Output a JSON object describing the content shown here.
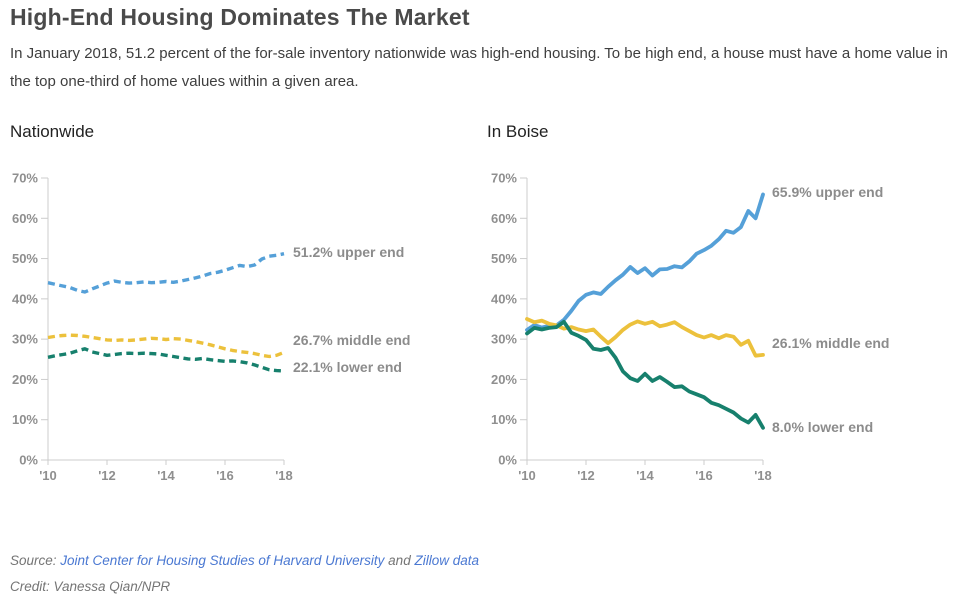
{
  "header": {
    "title": "High-End Housing Dominates The Market",
    "subtitle": "In January 2018, 51.2 percent of the for-sale inventory nationwide was high-end housing. To be high end, a house must have a home value in the top one-third of home values within a given area."
  },
  "chart_data": [
    {
      "type": "line",
      "title": "Nationwide",
      "line_style": "dashed",
      "dash": [
        7,
        4.5
      ],
      "stroke_width": 3.4,
      "xlim": [
        2010,
        2018
      ],
      "ylim": [
        0,
        70
      ],
      "grid": false,
      "xtick_labels": [
        "'10",
        "'12",
        "'14",
        "'16",
        "'18"
      ],
      "xtick_years": [
        2010,
        2012,
        2014,
        2016,
        2018
      ],
      "yticks": [
        "70%",
        "60%",
        "50%",
        "40%",
        "30%",
        "20%",
        "10%",
        "0%"
      ],
      "x": [
        2010,
        2010.25,
        2010.5,
        2010.75,
        2011,
        2011.25,
        2011.5,
        2011.75,
        2012,
        2012.25,
        2012.5,
        2012.75,
        2013,
        2013.25,
        2013.5,
        2013.75,
        2014,
        2014.25,
        2014.5,
        2014.75,
        2015,
        2015.25,
        2015.5,
        2015.75,
        2016,
        2016.25,
        2016.5,
        2016.75,
        2017,
        2017.25,
        2017.5,
        2017.75,
        2018
      ],
      "series": [
        {
          "name": "upper end",
          "label": "51.2% upper end",
          "end_value": 51.2,
          "color": "#55a0d8",
          "label_dy": -2,
          "values": [
            44.0,
            43.6,
            43.2,
            42.8,
            42.1,
            41.7,
            42.5,
            43.2,
            43.9,
            44.4,
            44.1,
            43.9,
            44.0,
            44.2,
            44.0,
            44.1,
            44.3,
            44.1,
            44.4,
            44.8,
            45.2,
            45.7,
            46.3,
            46.6,
            47.1,
            47.7,
            48.3,
            48.0,
            48.4,
            49.9,
            50.6,
            50.8,
            51.2
          ]
        },
        {
          "name": "middle end",
          "label": "26.7% middle end",
          "end_value": 26.7,
          "color": "#ecc13c",
          "label_dy": -12,
          "values": [
            30.4,
            30.7,
            30.9,
            31.0,
            30.9,
            30.7,
            30.4,
            30.1,
            29.8,
            29.7,
            29.8,
            29.7,
            29.8,
            30.0,
            30.2,
            30.1,
            29.9,
            30.1,
            30.0,
            29.7,
            29.4,
            29.0,
            28.6,
            28.1,
            27.6,
            27.2,
            26.9,
            26.7,
            26.4,
            26.0,
            25.7,
            26.0,
            26.7
          ]
        },
        {
          "name": "lower end",
          "label": "22.1% lower end",
          "end_value": 22.1,
          "color": "#17806d",
          "label_dy": -4,
          "values": [
            25.5,
            25.9,
            26.2,
            26.5,
            27.1,
            27.6,
            26.8,
            26.4,
            26.0,
            26.2,
            26.4,
            26.5,
            26.4,
            26.5,
            26.4,
            26.3,
            26.0,
            25.7,
            25.4,
            25.1,
            25.0,
            25.2,
            24.9,
            24.7,
            24.5,
            24.6,
            24.4,
            24.1,
            23.6,
            23.0,
            22.4,
            22.2,
            22.1
          ]
        }
      ]
    },
    {
      "type": "line",
      "title": "In Boise",
      "line_style": "solid",
      "dash": null,
      "stroke_width": 3.8,
      "xlim": [
        2010,
        2018
      ],
      "ylim": [
        0,
        70
      ],
      "grid": false,
      "xtick_labels": [
        "'10",
        "'12",
        "'14",
        "'16",
        "'18"
      ],
      "xtick_years": [
        2010,
        2012,
        2014,
        2016,
        2018
      ],
      "yticks": [
        "70%",
        "60%",
        "50%",
        "40%",
        "30%",
        "20%",
        "10%",
        "0%"
      ],
      "x": [
        2010,
        2010.25,
        2010.5,
        2010.75,
        2011,
        2011.25,
        2011.5,
        2011.75,
        2012,
        2012.25,
        2012.5,
        2012.75,
        2013,
        2013.25,
        2013.5,
        2013.75,
        2014,
        2014.25,
        2014.5,
        2014.75,
        2015,
        2015.25,
        2015.5,
        2015.75,
        2016,
        2016.25,
        2016.5,
        2016.75,
        2017,
        2017.25,
        2017.5,
        2017.75,
        2018
      ],
      "series": [
        {
          "name": "upper end",
          "label": "65.9% upper end",
          "end_value": 65.9,
          "color": "#55a0d8",
          "label_dy": -3,
          "values": [
            32.3,
            33.5,
            32.9,
            33.3,
            33.4,
            34.8,
            37.0,
            39.5,
            41.0,
            41.6,
            41.2,
            43.0,
            44.6,
            46.0,
            47.9,
            46.4,
            47.6,
            45.8,
            47.3,
            47.4,
            48.1,
            47.8,
            49.3,
            51.2,
            52.1,
            53.2,
            54.8,
            56.9,
            56.4,
            57.8,
            61.8,
            60.0,
            65.9
          ]
        },
        {
          "name": "middle end",
          "label": "26.1% middle end",
          "end_value": 26.1,
          "color": "#ecc13c",
          "label_dy": -12,
          "values": [
            35.0,
            34.2,
            34.6,
            33.8,
            33.4,
            32.6,
            33.0,
            32.4,
            32.0,
            32.4,
            30.6,
            29.0,
            30.5,
            32.3,
            33.6,
            34.4,
            33.8,
            34.3,
            33.2,
            33.6,
            34.2,
            33.0,
            32.0,
            31.0,
            30.4,
            31.0,
            30.2,
            31.0,
            30.6,
            28.6,
            29.6,
            25.9,
            26.1
          ]
        },
        {
          "name": "lower end",
          "label": "8.0% lower end",
          "end_value": 8.0,
          "color": "#17806d",
          "label_dy": -1,
          "values": [
            31.4,
            32.8,
            32.4,
            32.8,
            33.0,
            34.3,
            31.6,
            30.8,
            29.8,
            27.6,
            27.3,
            27.8,
            25.4,
            22.0,
            20.3,
            19.6,
            21.4,
            19.6,
            20.6,
            19.4,
            18.1,
            18.3,
            17.0,
            16.3,
            15.6,
            14.2,
            13.6,
            12.7,
            11.8,
            10.3,
            9.3,
            11.2,
            8.0
          ]
        }
      ]
    }
  ],
  "style": {
    "axis_color": "#cccccc",
    "tick_label_color": "#8f8f8f",
    "series_label_color": "#8c8c8c"
  },
  "footer": {
    "source_prefix": "Source: ",
    "source_link_1": "Joint Center for Housing Studies of Harvard University",
    "source_conjunction": " and ",
    "source_link_2": "Zillow data",
    "credit": "Credit: Vanessa Qian/NPR"
  }
}
